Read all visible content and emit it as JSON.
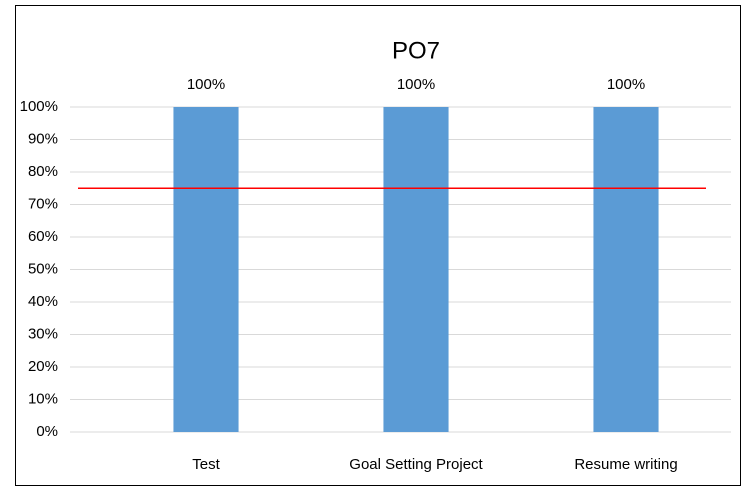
{
  "chart_data": {
    "type": "bar",
    "title": "PO7",
    "categories": [
      "Test",
      "Goal Setting Project",
      "Resume writing"
    ],
    "values": [
      100,
      100,
      100
    ],
    "value_labels": [
      "100%",
      "100%",
      "100%"
    ],
    "color": "#5b9bd5",
    "ylim": [
      0,
      100
    ],
    "yticks": [
      {
        "value": 0,
        "label": "0%"
      },
      {
        "value": 10,
        "label": "10%"
      },
      {
        "value": 20,
        "label": "20%"
      },
      {
        "value": 30,
        "label": "30%"
      },
      {
        "value": 40,
        "label": "40%"
      },
      {
        "value": 50,
        "label": "50%"
      },
      {
        "value": 60,
        "label": "60%"
      },
      {
        "value": 70,
        "label": "70%"
      },
      {
        "value": 80,
        "label": "80%"
      },
      {
        "value": 90,
        "label": "90%"
      },
      {
        "value": 100,
        "label": "100%"
      }
    ],
    "grid": true,
    "reference_line": {
      "value": 75,
      "color": "#ff0000"
    }
  }
}
